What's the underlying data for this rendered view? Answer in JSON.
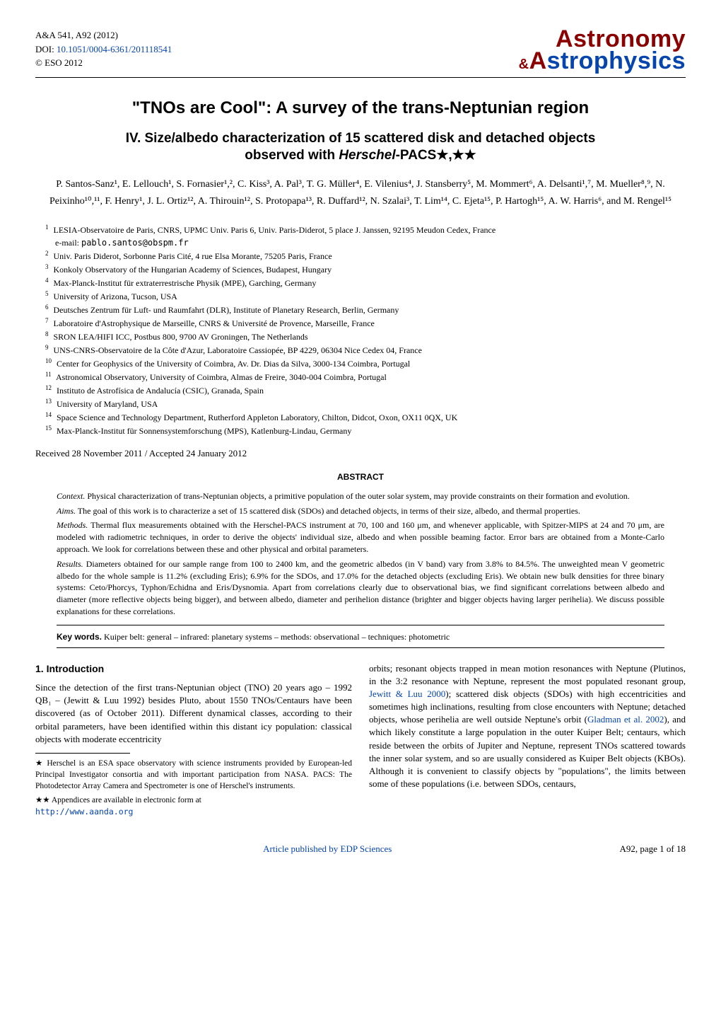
{
  "journal": {
    "ref": "A&A 541, A92 (2012)",
    "doi_label": "DOI:",
    "doi": "10.1051/0004-6361/201118541",
    "copyright": "© ESO 2012"
  },
  "logo": {
    "word1": "Astronomy",
    "amp": "&",
    "word2_a": "A",
    "word2_rest": "strophysics"
  },
  "title": "\"TNOs are Cool\": A survey of the trans-Neptunian region",
  "subtitle_line1": "IV. Size/albedo characterization of 15 scattered disk and detached objects",
  "subtitle_line2_pre": "observed with ",
  "subtitle_line2_em": "Herschel",
  "subtitle_line2_post": "-PACS★,★★",
  "authors": "P. Santos-Sanz¹, E. Lellouch¹, S. Fornasier¹,², C. Kiss³, A. Pal³, T. G. Müller⁴, E. Vilenius⁴, J. Stansberry⁵, M. Mommert⁶, A. Delsanti¹,⁷, M. Mueller⁸,⁹, N. Peixinho¹⁰,¹¹, F. Henry¹, J. L. Ortiz¹², A. Thirouin¹², S. Protopapa¹³, R. Duffard¹², N. Szalai³, T. Lim¹⁴, C. Ejeta¹⁵, P. Hartogh¹⁵, A. W. Harris⁶, and M. Rengel¹⁵",
  "affiliations": [
    {
      "n": "1",
      "text": "LESIA-Observatoire de Paris, CNRS, UPMC Univ. Paris 6, Univ. Paris-Diderot, 5 place J. Janssen, 92195 Meudon Cedex, France",
      "email_label": "e-mail:",
      "email": "pablo.santos@obspm.fr"
    },
    {
      "n": "2",
      "text": "Univ. Paris Diderot, Sorbonne Paris Cité, 4 rue Elsa Morante, 75205 Paris, France"
    },
    {
      "n": "3",
      "text": "Konkoly Observatory of the Hungarian Academy of Sciences, Budapest, Hungary"
    },
    {
      "n": "4",
      "text": "Max-Planck-Institut für extraterrestrische Physik (MPE), Garching, Germany"
    },
    {
      "n": "5",
      "text": "University of Arizona, Tucson, USA"
    },
    {
      "n": "6",
      "text": "Deutsches Zentrum für Luft- und Raumfahrt (DLR), Institute of Planetary Research, Berlin, Germany"
    },
    {
      "n": "7",
      "text": "Laboratoire d'Astrophysique de Marseille, CNRS & Université de Provence, Marseille, France"
    },
    {
      "n": "8",
      "text": "SRON LEA/HIFI ICC, Postbus 800, 9700 AV Groningen, The Netherlands"
    },
    {
      "n": "9",
      "text": "UNS-CNRS-Observatoire de la Côte d'Azur, Laboratoire Cassiopée, BP 4229, 06304 Nice Cedex 04, France"
    },
    {
      "n": "10",
      "text": "Center for Geophysics of the University of Coimbra, Av. Dr. Dias da Silva, 3000-134 Coimbra, Portugal"
    },
    {
      "n": "11",
      "text": "Astronomical Observatory, University of Coimbra, Almas de Freire, 3040-004 Coimbra, Portugal"
    },
    {
      "n": "12",
      "text": "Instituto de Astrofísica de Andalucía (CSIC), Granada, Spain"
    },
    {
      "n": "13",
      "text": "University of Maryland, USA"
    },
    {
      "n": "14",
      "text": "Space Science and Technology Department, Rutherford Appleton Laboratory, Chilton, Didcot, Oxon, OX11 0QX, UK"
    },
    {
      "n": "15",
      "text": "Max-Planck-Institut für Sonnensystemforschung (MPS), Katlenburg-Lindau, Germany"
    }
  ],
  "received": "Received 28 November 2011 / Accepted 24 January 2012",
  "abstract_heading": "ABSTRACT",
  "abstract": {
    "context_label": "Context.",
    "context": "Physical characterization of trans-Neptunian objects, a primitive population of the outer solar system, may provide constraints on their formation and evolution.",
    "aims_label": "Aims.",
    "aims": "The goal of this work is to characterize a set of 15 scattered disk (SDOs) and detached objects, in terms of their size, albedo, and thermal properties.",
    "methods_label": "Methods.",
    "methods": "Thermal flux measurements obtained with the Herschel-PACS instrument at 70, 100 and 160 μm, and whenever applicable, with Spitzer-MIPS at 24 and 70 μm, are modeled with radiometric techniques, in order to derive the objects' individual size, albedo and when possible beaming factor. Error bars are obtained from a Monte-Carlo approach. We look for correlations between these and other physical and orbital parameters.",
    "results_label": "Results.",
    "results": "Diameters obtained for our sample range from 100 to 2400 km, and the geometric albedos (in V band) vary from 3.8% to 84.5%. The unweighted mean V geometric albedo for the whole sample is 11.2% (excluding Eris); 6.9% for the SDOs, and 17.0% for the detached objects (excluding Eris). We obtain new bulk densities for three binary systems: Ceto/Phorcys, Typhon/Echidna and Eris/Dysnomia. Apart from correlations clearly due to observational bias, we find significant correlations between albedo and diameter (more reflective objects being bigger), and between albedo, diameter and perihelion distance (brighter and bigger objects having larger perihelia). We discuss possible explanations for these correlations."
  },
  "keywords_label": "Key words.",
  "keywords": "Kuiper belt: general – infrared: planetary systems – methods: observational – techniques: photometric",
  "section1_heading": "1. Introduction",
  "body_left": "Since the detection of the first trans-Neptunian object (TNO) 20 years ago – 1992 QB₁ – (Jewitt & Luu 1992) besides Pluto, about 1550 TNOs/Centaurs have been discovered (as of October 2011). Different dynamical classes, according to their orbital parameters, have been identified within this distant icy population: classical objects with moderate eccentricity",
  "footnote1": "★ Herschel is an ESA space observatory with science instruments provided by European-led Principal Investigator consortia and with important participation from NASA. PACS: The Photodetector Array Camera and Spectrometer is one of Herschel's instruments.",
  "footnote2": "★★ Appendices are available in electronic form at",
  "footnote2_url": "http://www.aanda.org",
  "body_right_1": "orbits; resonant objects trapped in mean motion resonances with Neptune (Plutinos, in the 3:2 resonance with Neptune, represent the most populated resonant group, ",
  "ref1": "Jewitt & Luu 2000",
  "body_right_2": "); scattered disk objects (SDOs) with high eccentricities and sometimes high inclinations, resulting from close encounters with Neptune; detached objects, whose perihelia are well outside Neptune's orbit (",
  "ref2": "Gladman et al. 2002",
  "body_right_3": "), and which likely constitute a large population in the outer Kuiper Belt; centaurs, which reside between the orbits of Jupiter and Neptune, represent TNOs scattered towards the inner solar system, and so are usually considered as Kuiper Belt objects (KBOs). Although it is convenient to classify objects by \"populations\", the limits between some of these populations (i.e. between SDOs, centaurs,",
  "footer_link": "Article published by EDP Sciences",
  "page_num": "A92, page 1 of 18"
}
